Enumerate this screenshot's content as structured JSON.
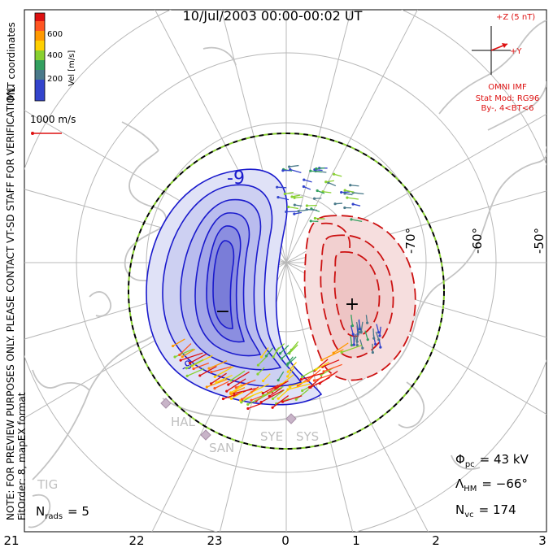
{
  "title": "10/Jul/2003  00:00-00:02  UT",
  "colorbar": {
    "label": "Vel [m/s]",
    "ticks": [
      "600",
      "400",
      "200"
    ],
    "colors": [
      "#dd1111",
      "#ff5522",
      "#ff9900",
      "#ffd000",
      "#88d030",
      "#33a060",
      "#4a7a8a",
      "#3344cc"
    ]
  },
  "coords_label": "MLT coordinates",
  "ref_vector": "1000 m/s",
  "imf": {
    "z_label": "+Z (5 nT)",
    "y_label": "+Y",
    "source": "OMNI IMF",
    "model": "Stat Mod: RG96",
    "bins": "By-, 4<BT<6"
  },
  "disclaimer": "NOTE: FOR PREVIEW PURPOSES ONLY. PLEASE CONTACT VT-SD STAFF FOR VERIFICATION.",
  "fitorder": "FitOrder: 8, mapEX format",
  "nrads": {
    "symbol": "N",
    "sub": "rads",
    "value": "= 5"
  },
  "phi_pc": {
    "symbol": "Φ",
    "sub": "pc",
    "value": "= 43 kV"
  },
  "lambda_hm": {
    "symbol": "Λ",
    "sub": "HM",
    "value": "= −66°"
  },
  "nvc": {
    "symbol": "N",
    "sub": "vc",
    "value": "= 174"
  },
  "lat_labels": [
    "-70°",
    "-60°",
    "-50°"
  ],
  "contour_labels": {
    "neg": "-9",
    "neg_center": "−",
    "pos_center": "+",
    "small": "-9"
  },
  "stations": [
    "HAL",
    "SAN",
    "SYE",
    "SYS",
    "TIG"
  ],
  "mlt_labels": [
    "21",
    "22",
    "23",
    "0",
    "1",
    "2",
    "3"
  ],
  "colors": {
    "negative": "#1a1acc",
    "positive": "#cc1111",
    "land": "#c8c8c8",
    "grid": "#b0b0b0"
  }
}
